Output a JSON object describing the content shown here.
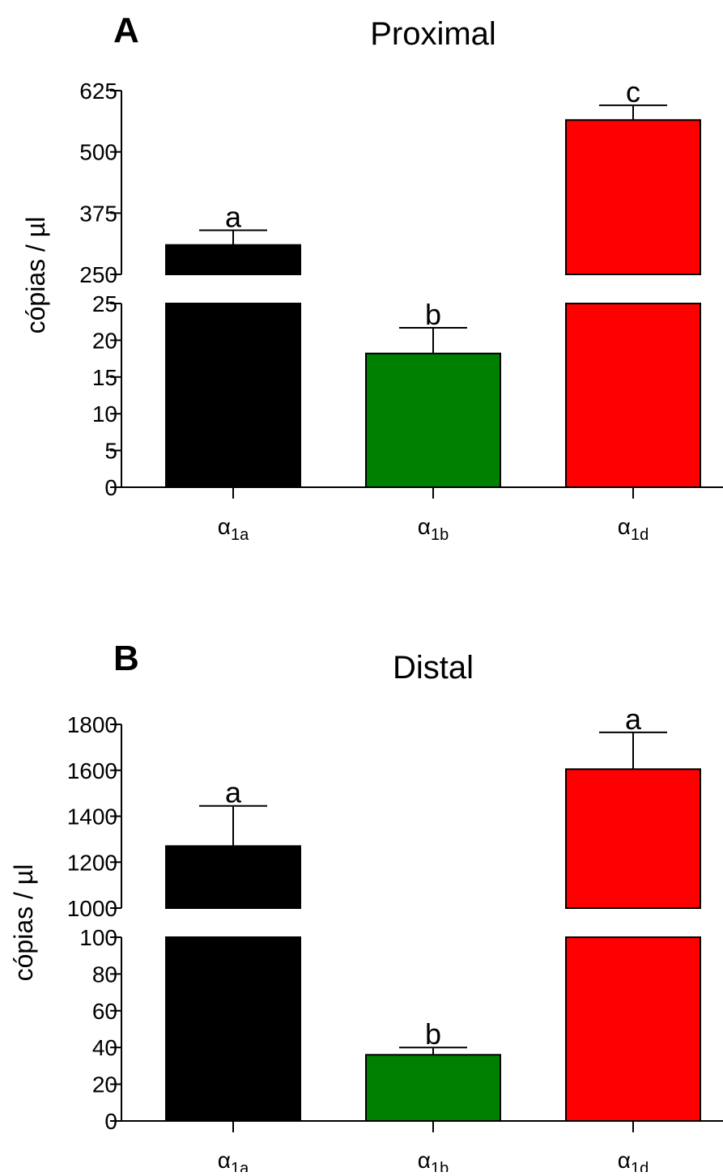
{
  "chart_data": [
    {
      "type": "bar",
      "panel": "A",
      "title": "Proximal",
      "ylabel": "cópias / µl",
      "categories": [
        {
          "base": "α",
          "sub": "1a"
        },
        {
          "base": "α",
          "sub": "1b"
        },
        {
          "base": "α",
          "sub": "1d"
        }
      ],
      "values": [
        310,
        18.2,
        565
      ],
      "errors": [
        30,
        3.5,
        30
      ],
      "significance": [
        "a",
        "b",
        "c"
      ],
      "colors": [
        "#000000",
        "#008000",
        "#ff0000"
      ],
      "axis_break": true,
      "y_lower": {
        "lim": [
          0,
          25
        ],
        "ticks": [
          0,
          5,
          10,
          15,
          20,
          25
        ]
      },
      "y_upper": {
        "lim": [
          250,
          625
        ],
        "ticks": [
          250,
          375,
          500,
          625
        ]
      }
    },
    {
      "type": "bar",
      "panel": "B",
      "title": "Distal",
      "ylabel": "cópias / µl",
      "categories": [
        {
          "base": "α",
          "sub": "1a"
        },
        {
          "base": "α",
          "sub": "1b"
        },
        {
          "base": "α",
          "sub": "1d"
        }
      ],
      "values": [
        1270,
        36,
        1605
      ],
      "errors": [
        175,
        4,
        160
      ],
      "significance": [
        "a",
        "b",
        "a"
      ],
      "colors": [
        "#000000",
        "#008000",
        "#ff0000"
      ],
      "axis_break": true,
      "y_lower": {
        "lim": [
          0,
          100
        ],
        "ticks": [
          0,
          20,
          40,
          60,
          80,
          100
        ]
      },
      "y_upper": {
        "lim": [
          1000,
          1800
        ],
        "ticks": [
          1000,
          1200,
          1400,
          1600,
          1800
        ]
      }
    }
  ]
}
